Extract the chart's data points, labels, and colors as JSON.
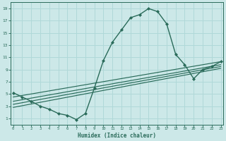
{
  "xlabel": "Humidex (Indice chaleur)",
  "bg_color": "#cce8e8",
  "line_color": "#2a6b5a",
  "grid_color": "#b0d8d8",
  "x_main": [
    0,
    1,
    2,
    3,
    4,
    5,
    6,
    7,
    8,
    9,
    10,
    11,
    12,
    13,
    14,
    15,
    16,
    17,
    18,
    19,
    20,
    21,
    22,
    23
  ],
  "y_main": [
    5.2,
    4.5,
    3.8,
    3.0,
    2.5,
    1.8,
    1.5,
    0.8,
    1.8,
    6.0,
    10.5,
    13.5,
    15.5,
    17.5,
    18.0,
    19.0,
    18.5,
    16.5,
    11.5,
    9.8,
    7.5,
    9.0,
    9.5,
    10.3
  ],
  "ref_lines": [
    {
      "x": [
        0,
        23
      ],
      "y": [
        4.5,
        10.3
      ]
    },
    {
      "x": [
        0,
        23
      ],
      "y": [
        3.8,
        9.8
      ]
    },
    {
      "x": [
        0,
        23
      ],
      "y": [
        3.3,
        9.5
      ]
    },
    {
      "x": [
        0,
        23
      ],
      "y": [
        2.8,
        9.2
      ]
    }
  ],
  "yticks": [
    1,
    3,
    5,
    7,
    9,
    11,
    13,
    15,
    17,
    19
  ],
  "xticks": [
    0,
    1,
    2,
    3,
    4,
    5,
    6,
    7,
    8,
    9,
    10,
    11,
    12,
    13,
    14,
    15,
    16,
    17,
    18,
    19,
    20,
    21,
    22,
    23
  ],
  "xlim": [
    -0.3,
    23.3
  ],
  "ylim": [
    0,
    20
  ],
  "figsize": [
    3.2,
    2.0
  ],
  "dpi": 100
}
